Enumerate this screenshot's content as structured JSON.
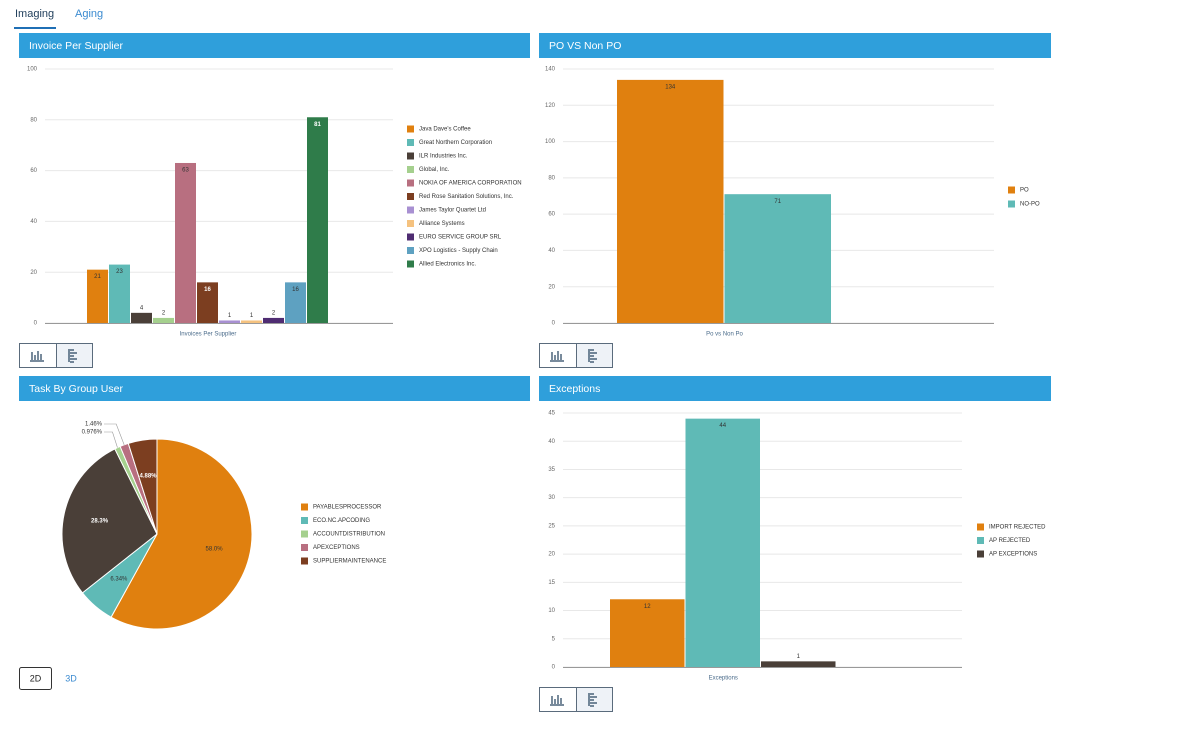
{
  "tabs": [
    "Imaging",
    "Aging"
  ],
  "chart_data": [
    {
      "type": "bar",
      "title": "Invoice Per Supplier",
      "categories": [
        "Invoices Per Supplier"
      ],
      "series": [
        {
          "name": "Java Dave's Coffee",
          "color": "#e0800f",
          "values": [
            21
          ]
        },
        {
          "name": "Great Northern Corporation",
          "color": "#5fbab6",
          "values": [
            23
          ]
        },
        {
          "name": "ILR Industries Inc.",
          "color": "#4a3f38",
          "values": [
            4
          ]
        },
        {
          "name": "Global, Inc.",
          "color": "#a5d08e",
          "values": [
            2
          ]
        },
        {
          "name": "NOKIA OF AMERICA CORPORATION",
          "color": "#b86f80",
          "values": [
            63
          ]
        },
        {
          "name": "Red Rose Sanitation Solutions, Inc.",
          "color": "#7c3e20",
          "values": [
            16
          ]
        },
        {
          "name": "James Taylor Quartet Ltd",
          "color": "#a890d2",
          "values": [
            1
          ]
        },
        {
          "name": "Alliance Systems",
          "color": "#f5c27f",
          "values": [
            1
          ]
        },
        {
          "name": "EURO SERVICE GROUP SRL",
          "color": "#4f2c72",
          "values": [
            2
          ]
        },
        {
          "name": "XPO Logistics - Supply Chain",
          "color": "#5ea1c1",
          "values": [
            16
          ]
        },
        {
          "name": "Allied Electronics Inc.",
          "color": "#2f7c4a",
          "values": [
            81
          ]
        }
      ],
      "ylim": [
        0,
        100
      ],
      "yticks": [
        0,
        20,
        40,
        60,
        80,
        100
      ],
      "grid": true,
      "legend": "right"
    },
    {
      "type": "bar",
      "title": "PO VS Non PO",
      "categories": [
        "Po vs Non Po"
      ],
      "series": [
        {
          "name": "PO",
          "color": "#e0800f",
          "values": [
            134
          ]
        },
        {
          "name": "NO-PO",
          "color": "#5fbab6",
          "values": [
            71
          ]
        }
      ],
      "ylim": [
        0,
        140
      ],
      "yticks": [
        0,
        20,
        40,
        60,
        80,
        100,
        120,
        140
      ],
      "grid": true,
      "legend": "right"
    },
    {
      "type": "pie",
      "title": "Task By Group User",
      "categories": [
        "PAYABLESPROCESSOR",
        "ECO.NC.APCODING",
        null,
        "ACCOUNTDISTRIBUTION",
        "APEXCEPTIONS",
        "SUPPLIERMAINTENANCE"
      ],
      "values": [
        58.0,
        6.34,
        28.3,
        0.976,
        1.46,
        4.88
      ],
      "value_labels": [
        "58.0%",
        "6.34%",
        "28.3%",
        "0.976%",
        "1.46%",
        "4.88%"
      ],
      "colors": [
        "#e0800f",
        "#5fbab6",
        "#4a3f38",
        "#a5d08e",
        "#b86f80",
        "#7c3e20"
      ],
      "legend": "right"
    },
    {
      "type": "bar",
      "title": "Exceptions",
      "categories": [
        "Exceptions"
      ],
      "series": [
        {
          "name": "IMPORT REJECTED",
          "color": "#e0800f",
          "values": [
            12
          ]
        },
        {
          "name": "AP REJECTED",
          "color": "#5fbab6",
          "values": [
            44
          ]
        },
        {
          "name": "AP EXCEPTIONS",
          "color": "#4a3f38",
          "values": [
            1
          ]
        }
      ],
      "ylim": [
        0,
        45
      ],
      "yticks": [
        0,
        5,
        10,
        15,
        20,
        25,
        30,
        35,
        40,
        45
      ],
      "grid": true,
      "legend": "right"
    }
  ],
  "view_modes": [
    "2D",
    "3D"
  ]
}
